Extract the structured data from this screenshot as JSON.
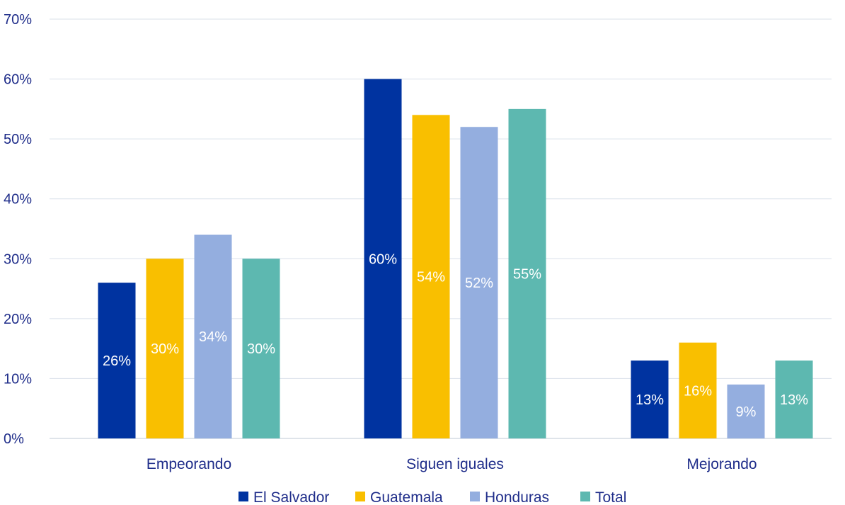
{
  "chart_data": {
    "type": "bar",
    "categories": [
      "Empeorando",
      "Siguen iguales",
      "Mejorando"
    ],
    "series": [
      {
        "name": "El Salvador",
        "values": [
          26,
          60,
          13
        ],
        "labels": [
          "26%",
          "60%",
          "13%"
        ],
        "color": "#0033a0"
      },
      {
        "name": "Guatemala",
        "values": [
          30,
          54,
          16
        ],
        "labels": [
          "30%",
          "54%",
          "16%"
        ],
        "color": "#f9bf00"
      },
      {
        "name": "Honduras",
        "values": [
          34,
          52,
          9
        ],
        "labels": [
          "34%",
          "52%",
          "9%"
        ],
        "color": "#94aedf"
      },
      {
        "name": "Total",
        "values": [
          30,
          55,
          13
        ],
        "labels": [
          "30%",
          "55%",
          "13%"
        ],
        "color": "#5db8b0"
      }
    ],
    "ylim": [
      0,
      70
    ],
    "yticks": [
      0,
      10,
      20,
      30,
      40,
      50,
      60,
      70
    ],
    "ytick_labels": [
      "0%",
      "10%",
      "20%",
      "30%",
      "40%",
      "50%",
      "60%",
      "70%"
    ],
    "grid": true,
    "legend_position": "bottom",
    "title": "",
    "xlabel": "",
    "ylabel": ""
  },
  "colors": {
    "text": "#1f2d8a",
    "grid": "#d9e0ea",
    "label": "#ffffff"
  }
}
